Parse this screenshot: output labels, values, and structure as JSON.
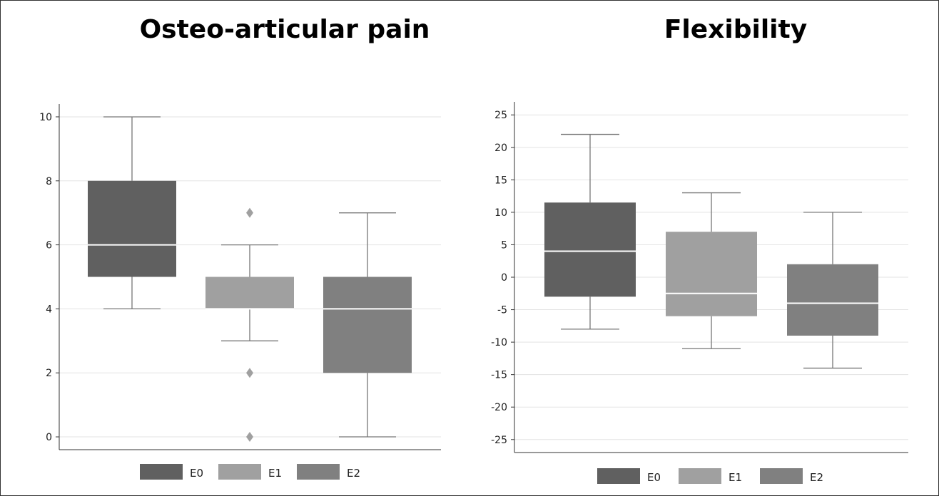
{
  "chart_data": [
    {
      "type": "box",
      "title": "Osteo-articular pain",
      "ylim": [
        -0.4,
        10.4
      ],
      "yticks": [
        "0",
        "2",
        "4",
        "6",
        "8",
        "10"
      ],
      "ytick_values": [
        0,
        2,
        4,
        6,
        8,
        10
      ],
      "grid": true,
      "legend_position": "bottom",
      "series": [
        {
          "name": "E0",
          "color": "#606060",
          "whisker_low": 4,
          "q1": 5,
          "median": 6,
          "q3": 8,
          "whisker_high": 10,
          "outliers": []
        },
        {
          "name": "E1",
          "color": "#a0a0a0",
          "whisker_low": 3,
          "q1": 4,
          "median": 4,
          "q3": 5,
          "whisker_high": 6,
          "outliers": [
            7,
            2,
            0
          ]
        },
        {
          "name": "E2",
          "color": "#808080",
          "whisker_low": 0,
          "q1": 2,
          "median": 4,
          "q3": 5,
          "whisker_high": 7,
          "outliers": []
        }
      ]
    },
    {
      "type": "box",
      "title": "Flexibility",
      "ylim": [
        -27,
        27
      ],
      "yticks": [
        "-25",
        "-20",
        "-15",
        "-10",
        "-5",
        "0",
        "5",
        "10",
        "15",
        "20",
        "25"
      ],
      "ytick_values": [
        -25,
        -20,
        -15,
        -10,
        -5,
        0,
        5,
        10,
        15,
        20,
        25
      ],
      "grid": true,
      "legend_position": "bottom",
      "series": [
        {
          "name": "E0",
          "color": "#606060",
          "whisker_low": -8,
          "q1": -3,
          "median": 4,
          "q3": 11.5,
          "whisker_high": 22,
          "outliers": []
        },
        {
          "name": "E1",
          "color": "#a0a0a0",
          "whisker_low": -11,
          "q1": -6,
          "median": -2.5,
          "q3": 7,
          "whisker_high": 13,
          "outliers": []
        },
        {
          "name": "E2",
          "color": "#808080",
          "whisker_low": -14,
          "q1": -9,
          "median": -4,
          "q3": 2,
          "whisker_high": 10,
          "outliers": []
        }
      ]
    }
  ]
}
